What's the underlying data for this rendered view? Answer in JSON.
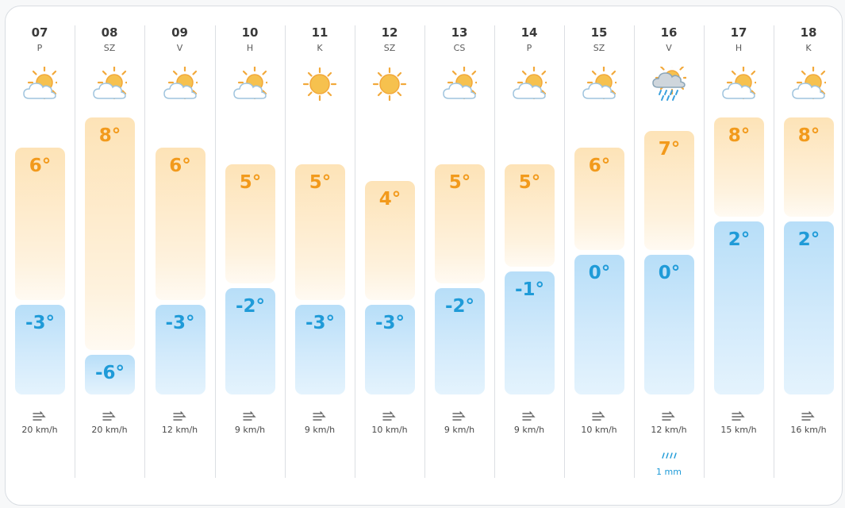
{
  "forecast": {
    "days": [
      {
        "day": "07",
        "dow": "P",
        "icon": "partly-cloudy-icon",
        "high": "6°",
        "low": "-3°",
        "wind": "20 km/h"
      },
      {
        "day": "08",
        "dow": "SZ",
        "icon": "partly-cloudy-icon",
        "high": "8°",
        "low": "-6°",
        "wind": "20 km/h"
      },
      {
        "day": "09",
        "dow": "V",
        "icon": "partly-cloudy-icon",
        "high": "6°",
        "low": "-3°",
        "wind": "12 km/h"
      },
      {
        "day": "10",
        "dow": "H",
        "icon": "partly-cloudy-icon",
        "high": "5°",
        "low": "-2°",
        "wind": "9 km/h"
      },
      {
        "day": "11",
        "dow": "K",
        "icon": "sun-icon",
        "high": "5°",
        "low": "-3°",
        "wind": "9 km/h"
      },
      {
        "day": "12",
        "dow": "SZ",
        "icon": "sun-icon",
        "high": "4°",
        "low": "-3°",
        "wind": "10 km/h"
      },
      {
        "day": "13",
        "dow": "CS",
        "icon": "partly-cloudy-icon",
        "high": "5°",
        "low": "-2°",
        "wind": "9 km/h"
      },
      {
        "day": "14",
        "dow": "P",
        "icon": "partly-cloudy-icon",
        "high": "5°",
        "low": "-1°",
        "wind": "9 km/h"
      },
      {
        "day": "15",
        "dow": "SZ",
        "icon": "partly-cloudy-icon",
        "high": "6°",
        "low": "0°",
        "wind": "10 km/h"
      },
      {
        "day": "16",
        "dow": "V",
        "icon": "rain-cloud-icon",
        "high": "7°",
        "low": "0°",
        "wind": "12 km/h",
        "precip": "1 mm"
      },
      {
        "day": "17",
        "dow": "H",
        "icon": "partly-cloudy-icon",
        "high": "8°",
        "low": "2°",
        "wind": "15 km/h"
      },
      {
        "day": "18",
        "dow": "K",
        "icon": "partly-cloudy-icon",
        "high": "8°",
        "low": "2°",
        "wind": "16 km/h"
      }
    ]
  },
  "colors": {
    "warm": "#f29a1c",
    "cold": "#1f9bd8"
  }
}
